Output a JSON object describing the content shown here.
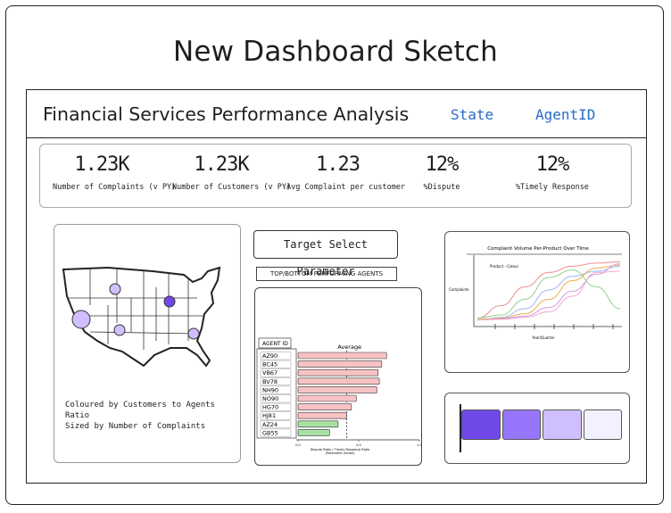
{
  "page": {
    "title": "New Dashboard Sketch"
  },
  "dashboard": {
    "title": "Financial Services Performance Analysis",
    "filters": [
      "State",
      "AgentID"
    ]
  },
  "kpis": [
    {
      "value": "1.23K",
      "label": "Number of Complaints (v PY)"
    },
    {
      "value": "1.23K",
      "label": "Number of Customers (v PY)"
    },
    {
      "value": "1.23",
      "label": "Avg Complaint per customer"
    },
    {
      "value": "12%",
      "label": "%Dispute"
    },
    {
      "value": "12%",
      "label": "%Timely Response"
    }
  ],
  "map": {
    "caption_line1": "Coloured by Customers to Agents Ratio",
    "caption_line2": "Sized by Number of Complaints"
  },
  "parameter": {
    "label": "Target Select Parameter",
    "toggle_label": "TOP/BOTTOM PERFORMING AGENTS"
  },
  "agents_chart": {
    "header": "AGENT ID",
    "average_label": "Average",
    "x_axis_label_line1": "Dispute Ratio / Timely Response Ratio",
    "x_axis_label_line2": "(Parameter Action)",
    "tick_labels": [
      "0.0",
      "0.5",
      "1.0"
    ],
    "colors": {
      "above": "#f6c2c4",
      "below": "#a9e0a3"
    }
  },
  "line_chart": {
    "title": "Complaint Volume Per-Product Over Time",
    "legend_label": "Product - Colour",
    "ylabel": "Complaints",
    "xlabel": "Year/Quarter"
  },
  "ratio_bar": {
    "colors": [
      "#7048e8",
      "#9775fa",
      "#d0bfff",
      "#f3f0ff"
    ]
  },
  "chart_data": [
    {
      "type": "bar",
      "orientation": "horizontal",
      "categories": [
        "AZ90",
        "BC45",
        "VB67",
        "BV78",
        "NH90",
        "NO90",
        "HG70",
        "HJ81",
        "AZ24",
        "GB55"
      ],
      "values": [
        0.73,
        0.69,
        0.66,
        0.67,
        0.65,
        0.48,
        0.44,
        0.4,
        0.33,
        0.26
      ],
      "average": 0.4,
      "xlim": [
        0,
        1.0
      ]
    },
    {
      "type": "line",
      "series": [
        {
          "color": "#f08c8c",
          "values": [
            0.05,
            0.25,
            0.55,
            0.78,
            0.88,
            0.93,
            0.95
          ]
        },
        {
          "color": "#8fd08f",
          "values": [
            0.05,
            0.1,
            0.35,
            0.7,
            0.82,
            0.55,
            0.2
          ]
        },
        {
          "color": "#9ab8ee",
          "values": [
            0.02,
            0.06,
            0.2,
            0.5,
            0.72,
            0.8,
            0.88
          ]
        },
        {
          "color": "#e6b24f",
          "values": [
            0.03,
            0.05,
            0.12,
            0.35,
            0.65,
            0.85,
            0.9
          ]
        },
        {
          "color": "#d59be0",
          "values": [
            0.02,
            0.04,
            0.08,
            0.22,
            0.48,
            0.75,
            0.92
          ]
        },
        {
          "color": "#f4a6d0",
          "values": [
            0.02,
            0.03,
            0.06,
            0.15,
            0.4,
            0.78,
            0.8
          ]
        }
      ]
    }
  ]
}
